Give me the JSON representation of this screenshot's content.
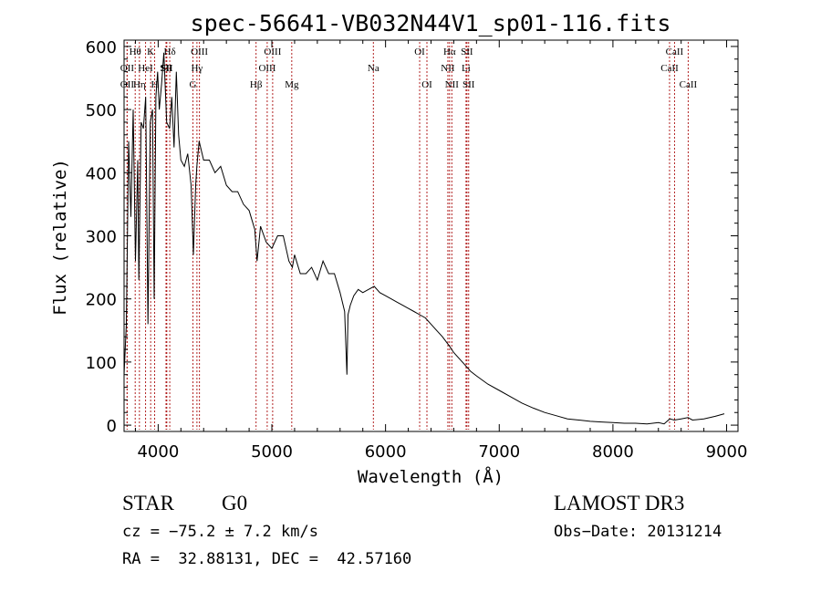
{
  "chart_data": {
    "type": "line",
    "title": "spec-56641-VB032N44V1_sp01-116.fits",
    "xlabel": "Wavelength (Å)",
    "ylabel": "Flux (relative)",
    "xlim": [
      3700,
      9100
    ],
    "ylim": [
      -10,
      610
    ],
    "xticks": [
      4000,
      5000,
      6000,
      7000,
      8000,
      9000
    ],
    "xtick_labels": [
      "4000",
      "5000",
      "6000",
      "7000",
      "8000",
      "9000"
    ],
    "yticks": [
      0,
      100,
      200,
      300,
      400,
      500,
      600
    ],
    "ytick_labels": [
      "0",
      "100",
      "200",
      "300",
      "400",
      "500",
      "600"
    ],
    "series": [
      {
        "name": "flux",
        "x": [
          3700,
          3720,
          3740,
          3760,
          3780,
          3800,
          3820,
          3830,
          3850,
          3870,
          3890,
          3910,
          3930,
          3950,
          3965,
          3980,
          3995,
          4010,
          4030,
          4050,
          4075,
          4100,
          4120,
          4140,
          4160,
          4180,
          4200,
          4230,
          4260,
          4290,
          4310,
          4330,
          4340,
          4360,
          4400,
          4450,
          4500,
          4550,
          4600,
          4650,
          4700,
          4750,
          4800,
          4850,
          4870,
          4900,
          4950,
          5000,
          5050,
          5100,
          5150,
          5180,
          5200,
          5250,
          5300,
          5350,
          5400,
          5450,
          5500,
          5550,
          5600,
          5640,
          5660,
          5670,
          5690,
          5720,
          5760,
          5800,
          5850,
          5900,
          5950,
          6000,
          6050,
          6100,
          6150,
          6200,
          6250,
          6300,
          6350,
          6400,
          6450,
          6500,
          6563,
          6600,
          6650,
          6700,
          6750,
          6800,
          6900,
          7000,
          7100,
          7200,
          7300,
          7400,
          7500,
          7600,
          7700,
          7800,
          7900,
          8000,
          8100,
          8200,
          8300,
          8400,
          8450,
          8500,
          8540,
          8600,
          8660,
          8700,
          8800,
          8900,
          8980
        ],
        "y": [
          80,
          160,
          450,
          330,
          500,
          260,
          420,
          230,
          480,
          470,
          520,
          160,
          480,
          500,
          200,
          520,
          560,
          500,
          540,
          590,
          480,
          470,
          520,
          440,
          560,
          460,
          420,
          410,
          430,
          380,
          270,
          380,
          410,
          450,
          420,
          420,
          400,
          410,
          380,
          370,
          370,
          350,
          340,
          310,
          260,
          315,
          290,
          280,
          300,
          300,
          260,
          250,
          270,
          240,
          240,
          250,
          230,
          260,
          240,
          240,
          210,
          180,
          80,
          175,
          190,
          205,
          215,
          210,
          215,
          220,
          210,
          205,
          200,
          195,
          190,
          185,
          180,
          175,
          170,
          160,
          150,
          140,
          125,
          115,
          105,
          95,
          85,
          78,
          65,
          55,
          45,
          35,
          27,
          20,
          15,
          10,
          8,
          6,
          5,
          4,
          3,
          3,
          2,
          4,
          2,
          10,
          8,
          10,
          12,
          8,
          10,
          14,
          18
        ]
      }
    ],
    "lines": [
      {
        "label": "Hθ",
        "x": 3798,
        "row": 0
      },
      {
        "label": "OII",
        "x": 3727,
        "row": 1
      },
      {
        "label": "OII",
        "x": 3727,
        "row": 2
      },
      {
        "label": "Hη",
        "x": 3835,
        "row": 2
      },
      {
        "label": "HeI",
        "x": 3889,
        "row": 1
      },
      {
        "label": "K",
        "x": 3934,
        "row": 0
      },
      {
        "label": "H",
        "x": 3969,
        "row": 2
      },
      {
        "label": "SII",
        "x": 4069,
        "row": 1
      },
      {
        "label": "Hδ",
        "x": 4102,
        "row": 0
      },
      {
        "label": "SII",
        "x": 4076,
        "row": 1
      },
      {
        "label": "OIII",
        "x": 4363,
        "row": 0
      },
      {
        "label": "Hγ",
        "x": 4341,
        "row": 1
      },
      {
        "label": "G",
        "x": 4306,
        "row": 2
      },
      {
        "label": "Hβ",
        "x": 4861,
        "row": 2
      },
      {
        "label": "OIII",
        "x": 4959,
        "row": 1
      },
      {
        "label": "OIII",
        "x": 5007,
        "row": 0
      },
      {
        "label": "Mg",
        "x": 5175,
        "row": 2
      },
      {
        "label": "Na",
        "x": 5893,
        "row": 1
      },
      {
        "label": "OI",
        "x": 6300,
        "row": 0
      },
      {
        "label": "OI",
        "x": 6364,
        "row": 2
      },
      {
        "label": "Hα",
        "x": 6563,
        "row": 0
      },
      {
        "label": "NII",
        "x": 6548,
        "row": 1
      },
      {
        "label": "NII",
        "x": 6583,
        "row": 2
      },
      {
        "label": "SII",
        "x": 6716,
        "row": 0
      },
      {
        "label": "Li",
        "x": 6708,
        "row": 1
      },
      {
        "label": "SII",
        "x": 6731,
        "row": 2
      },
      {
        "label": "CaII",
        "x": 8542,
        "row": 0
      },
      {
        "label": "CaII",
        "x": 8498,
        "row": 1
      },
      {
        "label": "CaII",
        "x": 8662,
        "row": 2
      }
    ]
  },
  "info": {
    "class": "STAR",
    "subclass": "G0",
    "cz": "cz = −75.2 ± 7.2 km/s",
    "coords": "RA =  32.88131, DEC =  42.57160",
    "survey": "LAMOST DR3",
    "obs_date": "Obs−Date: 20131214"
  }
}
